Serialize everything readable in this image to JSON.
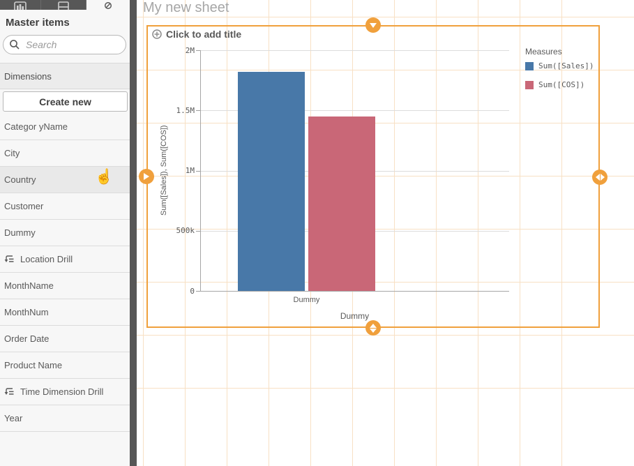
{
  "app": {
    "sheet_title": "My new sheet"
  },
  "sidebar": {
    "tabs": [
      {
        "name": "charts",
        "icon": "bar-chart-icon",
        "active": false
      },
      {
        "name": "custom-objects",
        "icon": "object-icon",
        "active": false
      },
      {
        "name": "master-items",
        "icon": "link-icon",
        "active": true
      }
    ],
    "panel_title": "Master items",
    "search": {
      "placeholder": "Search"
    },
    "section_header": "Dimensions",
    "create_button_label": "Create new",
    "items": [
      {
        "label": "Categor yName",
        "drill": false,
        "hovered": false
      },
      {
        "label": "City",
        "drill": false,
        "hovered": false
      },
      {
        "label": "Country",
        "drill": false,
        "hovered": true
      },
      {
        "label": "Customer",
        "drill": false,
        "hovered": false
      },
      {
        "label": "Dummy",
        "drill": false,
        "hovered": false
      },
      {
        "label": "Location Drill",
        "drill": true,
        "hovered": false
      },
      {
        "label": "MonthName",
        "drill": false,
        "hovered": false
      },
      {
        "label": "MonthNum",
        "drill": false,
        "hovered": false
      },
      {
        "label": "Order Date",
        "drill": false,
        "hovered": false
      },
      {
        "label": "Product Name",
        "drill": false,
        "hovered": false
      },
      {
        "label": "Time Dimension Drill",
        "drill": true,
        "hovered": false
      },
      {
        "label": "Year",
        "drill": false,
        "hovered": false
      }
    ]
  },
  "canvas": {
    "chart_placeholder_title": "Click to add title",
    "selection_color": "#f0a03c"
  },
  "chart_data": {
    "type": "bar",
    "title": "",
    "categories": [
      "Dummy"
    ],
    "series": [
      {
        "name": "Sum([Sales])",
        "color": "#4878a8",
        "values": [
          1820000
        ]
      },
      {
        "name": "Sum([COS])",
        "color": "#c96777",
        "values": [
          1450000
        ]
      }
    ],
    "xlabel": "Dummy",
    "ylabel": "Sum([Sales]), Sum([COS])",
    "ylim": [
      0,
      2000000
    ],
    "yticks": [
      {
        "label": "2M",
        "value": 2000000
      },
      {
        "label": "1.5M",
        "value": 1500000
      },
      {
        "label": "1M",
        "value": 1000000
      },
      {
        "label": "500k",
        "value": 500000
      },
      {
        "label": "0",
        "value": 0
      }
    ],
    "legend_title": "Measures",
    "legend_position": "right",
    "grid": true
  }
}
